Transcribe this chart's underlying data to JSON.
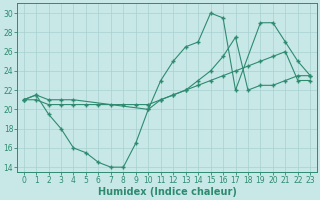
{
  "line1_x": [
    0,
    1,
    2,
    3,
    4,
    10,
    11,
    12,
    13,
    14,
    15,
    16,
    17,
    19,
    20,
    21,
    22,
    23
  ],
  "line1_y": [
    21,
    21.5,
    21,
    21,
    21,
    20,
    23,
    25,
    26.5,
    27,
    30,
    29.5,
    22,
    29,
    29,
    27,
    25,
    23.5
  ],
  "line2_x": [
    0,
    1,
    2,
    3,
    4,
    5,
    6,
    7,
    8,
    9,
    10,
    11,
    12,
    13,
    14,
    15,
    16,
    17,
    18,
    19,
    20,
    21,
    22,
    23
  ],
  "line2_y": [
    21,
    21,
    20.5,
    20.5,
    20.5,
    20.5,
    20.5,
    20.5,
    20.5,
    20.5,
    20.5,
    21,
    21.5,
    22,
    22.5,
    23,
    23.5,
    24,
    24.5,
    25,
    25.5,
    26,
    23,
    23
  ],
  "line3_x": [
    0,
    1,
    2,
    3,
    4,
    5,
    6,
    7,
    8,
    9,
    10,
    11,
    12,
    13,
    14,
    15,
    16,
    17,
    18,
    19,
    20,
    21,
    22,
    23
  ],
  "line3_y": [
    21,
    21.5,
    19.5,
    18,
    16,
    15.5,
    14.5,
    14,
    14,
    16.5,
    20,
    21,
    21.5,
    22,
    23,
    24,
    25.5,
    27.5,
    22,
    22.5,
    22.5,
    23,
    23.5,
    23.5
  ],
  "color": "#2e8b70",
  "bg_color": "#c8e8e8",
  "grid_color": "#a8d0d0",
  "xlabel": "Humidex (Indice chaleur)",
  "xlim": [
    -0.5,
    23.5
  ],
  "ylim": [
    13.5,
    31
  ],
  "yticks": [
    14,
    16,
    18,
    20,
    22,
    24,
    26,
    28,
    30
  ],
  "xticks": [
    0,
    1,
    2,
    3,
    4,
    5,
    6,
    7,
    8,
    9,
    10,
    11,
    12,
    13,
    14,
    15,
    16,
    17,
    18,
    19,
    20,
    21,
    22,
    23
  ],
  "tick_fontsize": 5.5,
  "label_fontsize": 7
}
